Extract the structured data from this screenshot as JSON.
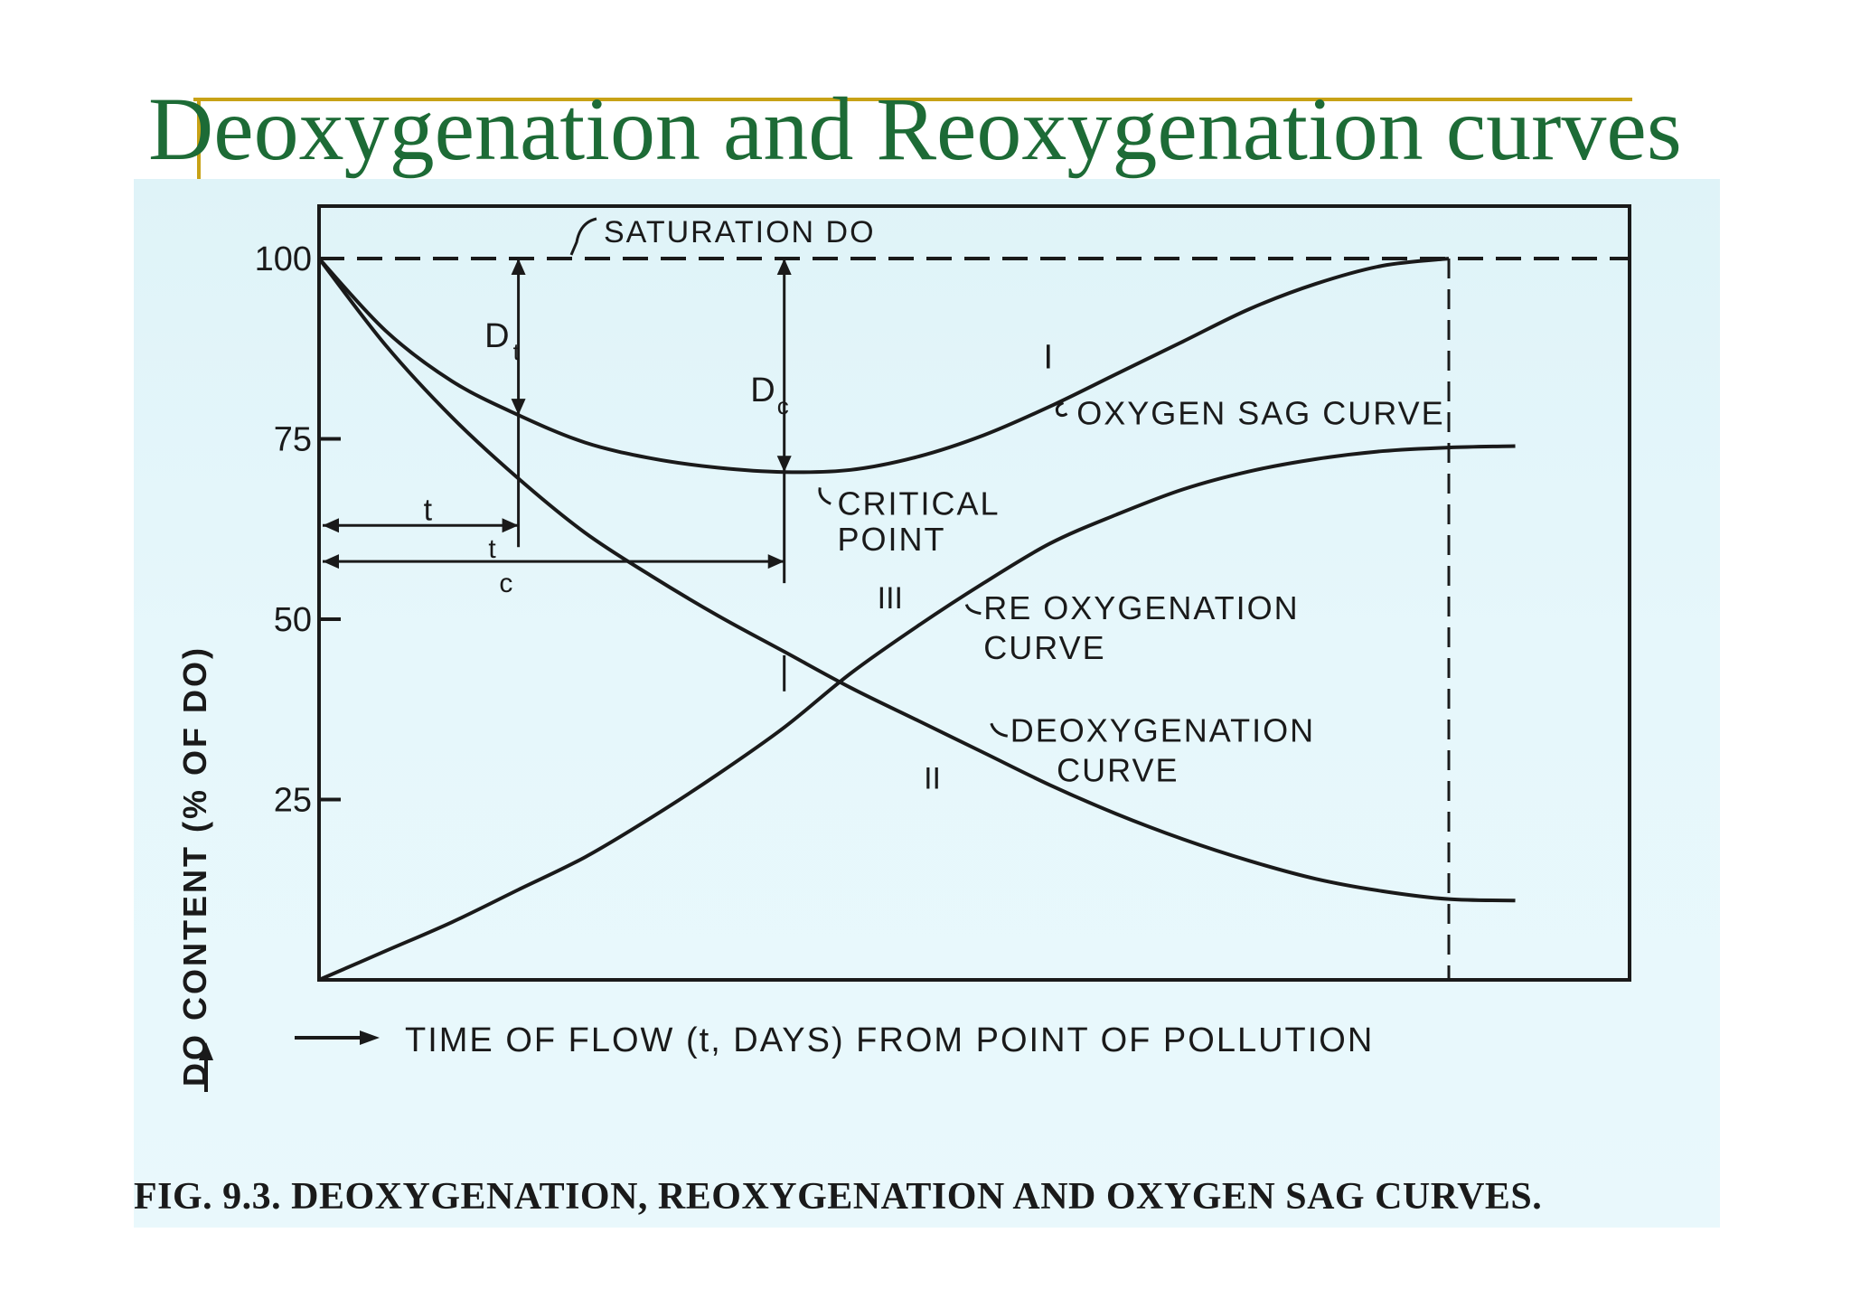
{
  "slide": {
    "title": "Deoxygenation and Reoxygenation curves",
    "accent_color": "#c8a216",
    "title_color": "#1d6b36"
  },
  "figure": {
    "caption": "FIG. 9.3. DEOXYGENATION, REOXYGENATION AND OXYGEN SAG CURVES."
  },
  "chart_data": {
    "type": "line",
    "xlabel": "TIME OF FLOW (t, DAYS) FROM POINT OF POLLUTION",
    "ylabel": "DO CONTENT (% OF DO)",
    "xlim": [
      0,
      10
    ],
    "ylim": [
      0,
      100
    ],
    "y_ticks": [
      25,
      50,
      75,
      100
    ],
    "y_tick_labels": [
      "25",
      "50",
      "75",
      "100"
    ],
    "grid": false,
    "legend": "none",
    "series": [
      {
        "id": "oxygen-sag",
        "name": "OXYGEN SAG CURVE",
        "roman": "I",
        "x": [
          0,
          0.5,
          1,
          1.5,
          2,
          2.5,
          3,
          3.5,
          4,
          4.5,
          5,
          5.5,
          6,
          6.5,
          7,
          7.5,
          8,
          8.5
        ],
        "y": [
          100,
          90,
          83,
          78.3,
          74.5,
          72.3,
          71,
          70.4,
          70.7,
          72.5,
          75.5,
          79.5,
          84,
          88.5,
          93,
          96.5,
          99,
          100
        ]
      },
      {
        "id": "reoxygenation",
        "name": "REOXYGENATION CURVE",
        "roman": "III",
        "x": [
          0,
          0.5,
          1,
          1.5,
          2,
          2.5,
          3,
          3.5,
          4,
          4.5,
          5,
          5.5,
          6,
          6.5,
          7,
          7.5,
          8,
          8.5,
          9
        ],
        "y": [
          0,
          4,
          8,
          12.5,
          17,
          22.5,
          28.5,
          35,
          42.5,
          49,
          55,
          60.5,
          64.5,
          68,
          70.5,
          72.2,
          73.3,
          73.8,
          74
        ]
      },
      {
        "id": "deoxygenation",
        "name": "DEOXYGENATION CURVE",
        "roman": "II",
        "x": [
          0,
          0.5,
          1,
          1.5,
          2,
          2.5,
          3,
          3.5,
          4,
          4.5,
          5,
          5.5,
          6,
          6.5,
          7,
          7.5,
          8,
          8.5,
          9
        ],
        "y": [
          100,
          88,
          78,
          69.5,
          62,
          56,
          50.5,
          45.5,
          40.5,
          36,
          31.5,
          27,
          23,
          19.5,
          16.5,
          14,
          12.3,
          11.2,
          11
        ]
      }
    ],
    "reference_lines": {
      "saturation": {
        "label": "SATURATION DO",
        "y": 100
      },
      "end_time": {
        "x": 8.5
      }
    },
    "annotations": {
      "critical_point_label_1": "CRITICAL",
      "critical_point_label_2": "POINT",
      "critical_x": 3.5,
      "deficit_t_main": "D",
      "deficit_t_sub": "t",
      "deficit_c_main": "D",
      "deficit_c_sub": "c",
      "t_label": "t",
      "tc_main": "t",
      "tc_sub": "c",
      "t_x": 1.5,
      "roman_I": "I",
      "roman_II": "II",
      "roman_III": "III",
      "sag_label": "OXYGEN SAG CURVE",
      "reox_label_1": "RE OXYGENATION",
      "reox_label_2": "CURVE",
      "deox_label_1": "DEOXYGENATION",
      "deox_label_2": "CURVE"
    }
  }
}
